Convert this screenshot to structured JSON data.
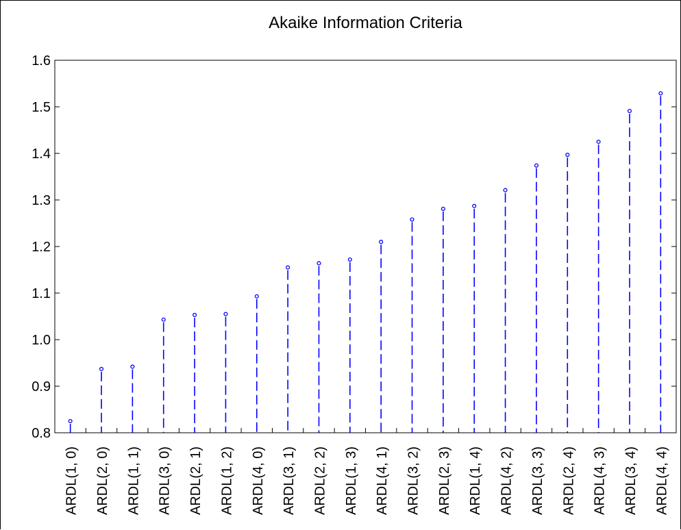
{
  "chart_data": {
    "type": "scatter",
    "style": "dropline",
    "title": "Akaike Information Criteria",
    "xlabel": "",
    "ylabel": "",
    "ylim": [
      0.8,
      1.6
    ],
    "yticks": [
      "0.8",
      "0.9",
      "1.0",
      "1.1",
      "1.2",
      "1.3",
      "1.4",
      "1.5",
      "1.6"
    ],
    "grid": false,
    "legend": "none",
    "marker_color": "#0000ff",
    "categories": [
      "ARDL(1, 0)",
      "ARDL(2, 0)",
      "ARDL(1, 1)",
      "ARDL(3, 0)",
      "ARDL(2, 1)",
      "ARDL(1, 2)",
      "ARDL(4, 0)",
      "ARDL(3, 1)",
      "ARDL(2, 2)",
      "ARDL(1, 3)",
      "ARDL(4, 1)",
      "ARDL(3, 2)",
      "ARDL(2, 3)",
      "ARDL(1, 4)",
      "ARDL(4, 2)",
      "ARDL(3, 3)",
      "ARDL(2, 4)",
      "ARDL(4, 3)",
      "ARDL(3, 4)",
      "ARDL(4, 4)"
    ],
    "values": [
      0.825,
      0.937,
      0.942,
      1.043,
      1.053,
      1.055,
      1.093,
      1.155,
      1.164,
      1.172,
      1.21,
      1.258,
      1.281,
      1.287,
      1.321,
      1.374,
      1.397,
      1.425,
      1.491,
      1.529
    ]
  }
}
